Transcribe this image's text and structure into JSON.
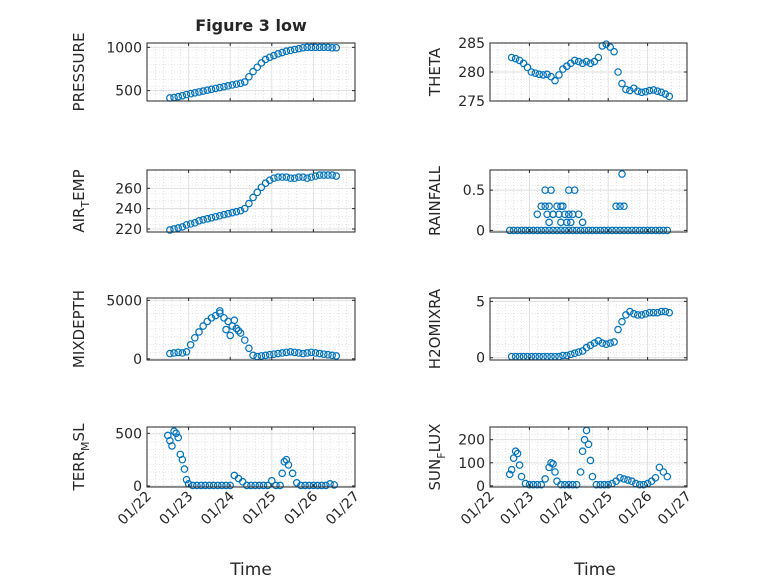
{
  "figure": {
    "title": "Figure 3 low",
    "xlabel": "Time",
    "marker_color": "#0072BD",
    "x_tick_labels": [
      "01/22",
      "01/23",
      "01/24",
      "01/25",
      "01/26",
      "01/27"
    ]
  },
  "chart_data": [
    {
      "type": "scatter",
      "ylabel": "PRESSURE",
      "ylim": [
        380,
        1050
      ],
      "yticks": [
        500,
        1000
      ],
      "xlim": [
        0,
        5
      ],
      "grid": true,
      "minor_grid": true,
      "x": [
        0.55,
        0.65,
        0.75,
        0.85,
        0.95,
        1.05,
        1.15,
        1.25,
        1.35,
        1.45,
        1.55,
        1.65,
        1.75,
        1.85,
        1.95,
        2.05,
        2.15,
        2.25,
        2.35,
        2.45,
        2.55,
        2.65,
        2.75,
        2.85,
        2.95,
        3.05,
        3.15,
        3.25,
        3.35,
        3.45,
        3.55,
        3.65,
        3.75,
        3.85,
        3.95,
        4.05,
        4.15,
        4.25,
        4.35,
        4.45,
        4.55
      ],
      "y": [
        415,
        420,
        430,
        440,
        455,
        465,
        475,
        485,
        495,
        505,
        515,
        525,
        535,
        545,
        555,
        565,
        575,
        585,
        600,
        660,
        720,
        770,
        820,
        860,
        885,
        905,
        925,
        940,
        955,
        965,
        975,
        985,
        995,
        1000,
        1000,
        1000,
        1000,
        1000,
        1000,
        995,
        995
      ]
    },
    {
      "type": "scatter",
      "ylabel": "THETA",
      "ylim": [
        275,
        285
      ],
      "yticks": [
        275,
        280,
        285
      ],
      "xlim": [
        0,
        5
      ],
      "grid": true,
      "minor_grid": true,
      "x": [
        0.55,
        0.65,
        0.75,
        0.85,
        0.95,
        1.05,
        1.15,
        1.25,
        1.35,
        1.45,
        1.55,
        1.65,
        1.75,
        1.85,
        1.95,
        2.05,
        2.15,
        2.25,
        2.35,
        2.45,
        2.55,
        2.65,
        2.75,
        2.85,
        2.95,
        3.05,
        3.15,
        3.25,
        3.35,
        3.45,
        3.55,
        3.65,
        3.75,
        3.85,
        3.95,
        4.05,
        4.15,
        4.25,
        4.35,
        4.45,
        4.55
      ],
      "y": [
        282.5,
        282.3,
        282.0,
        281.5,
        280.8,
        280.0,
        279.8,
        279.6,
        279.5,
        279.6,
        279.2,
        278.5,
        279.5,
        280.5,
        281.0,
        281.5,
        282.0,
        281.8,
        281.5,
        281.8,
        281.5,
        281.8,
        282.5,
        284.5,
        284.8,
        284.3,
        283.5,
        280.0,
        278.0,
        277.0,
        276.8,
        277.2,
        276.7,
        276.5,
        276.6,
        276.8,
        276.9,
        276.7,
        276.5,
        276.2,
        275.8
      ]
    },
    {
      "type": "scatter",
      "ylabel": "AIR_TEMP",
      "ylim": [
        217,
        278
      ],
      "yticks": [
        220,
        240,
        260
      ],
      "xlim": [
        0,
        5
      ],
      "grid": true,
      "minor_grid": true,
      "x": [
        0.55,
        0.65,
        0.75,
        0.85,
        0.95,
        1.05,
        1.15,
        1.25,
        1.35,
        1.45,
        1.55,
        1.65,
        1.75,
        1.85,
        1.95,
        2.05,
        2.15,
        2.25,
        2.35,
        2.45,
        2.55,
        2.65,
        2.75,
        2.85,
        2.95,
        3.05,
        3.15,
        3.25,
        3.35,
        3.45,
        3.55,
        3.65,
        3.75,
        3.85,
        3.95,
        4.05,
        4.15,
        4.25,
        4.35,
        4.45,
        4.55
      ],
      "y": [
        219,
        220,
        221,
        222,
        224,
        225,
        226,
        228,
        229,
        230,
        231,
        232,
        233,
        234,
        235,
        236,
        237,
        238,
        240,
        245,
        251,
        256,
        261,
        265,
        268,
        270,
        271,
        271,
        271,
        270,
        270,
        271,
        271,
        270,
        271,
        272,
        273,
        273,
        273,
        273,
        272
      ]
    },
    {
      "type": "scatter",
      "ylabel": "RAINFALL",
      "ylim": [
        -0.02,
        0.75
      ],
      "yticks": [
        0,
        0.5
      ],
      "xlim": [
        0,
        5
      ],
      "grid": true,
      "minor_grid": true,
      "x": [
        0.5,
        0.6,
        0.7,
        0.8,
        0.9,
        1.0,
        1.1,
        1.2,
        1.3,
        1.4,
        1.5,
        1.6,
        1.7,
        1.8,
        1.9,
        2.0,
        2.1,
        2.2,
        2.3,
        2.4,
        2.5,
        2.6,
        2.7,
        2.8,
        2.9,
        3.0,
        3.1,
        3.2,
        3.3,
        3.4,
        3.5,
        3.6,
        3.7,
        3.8,
        3.9,
        4.0,
        4.1,
        4.2,
        4.3,
        4.4,
        4.5,
        1.2,
        1.3,
        1.4,
        1.5,
        1.6,
        1.7,
        1.8,
        1.9,
        2.0,
        2.1,
        1.4,
        1.55,
        1.85,
        2.0,
        2.15,
        1.45,
        1.6,
        1.75,
        1.95,
        2.05,
        1.5,
        1.8,
        2.25,
        2.35,
        3.2,
        3.3,
        3.4,
        3.35
      ],
      "y": [
        0,
        0,
        0,
        0,
        0,
        0,
        0,
        0,
        0,
        0,
        0,
        0,
        0,
        0,
        0,
        0,
        0,
        0,
        0,
        0,
        0,
        0,
        0,
        0,
        0,
        0,
        0,
        0,
        0,
        0,
        0,
        0,
        0,
        0,
        0,
        0,
        0,
        0,
        0,
        0,
        0,
        0.2,
        0.3,
        0.3,
        0.3,
        0.2,
        0.3,
        0.3,
        0.2,
        0.2,
        0.2,
        0.5,
        0.5,
        0.3,
        0.5,
        0.5,
        0.2,
        0.2,
        0.2,
        0.1,
        0.1,
        0.1,
        0.1,
        0.2,
        0.1,
        0.3,
        0.3,
        0.3,
        0.7
      ]
    },
    {
      "type": "scatter",
      "ylabel": "MIXDEPTH",
      "ylim": [
        -100,
        5200
      ],
      "yticks": [
        0,
        5000
      ],
      "xlim": [
        0,
        5
      ],
      "grid": true,
      "minor_grid": true,
      "x": [
        0.55,
        0.65,
        0.75,
        0.85,
        0.95,
        1.05,
        1.15,
        1.25,
        1.35,
        1.45,
        1.55,
        1.65,
        1.75,
        1.85,
        1.95,
        2.05,
        2.15,
        2.25,
        2.35,
        2.45,
        2.55,
        2.65,
        2.75,
        2.85,
        2.95,
        3.05,
        3.15,
        3.25,
        3.35,
        3.45,
        3.55,
        3.65,
        3.75,
        3.85,
        3.95,
        4.05,
        4.15,
        4.25,
        4.35,
        4.45,
        4.55,
        1.75,
        1.9,
        2.0,
        2.1,
        2.2
      ],
      "y": [
        450,
        500,
        550,
        500,
        600,
        1200,
        1800,
        2300,
        2800,
        3200,
        3500,
        3700,
        3900,
        3500,
        3200,
        2800,
        2600,
        2200,
        1600,
        900,
        300,
        200,
        250,
        300,
        350,
        400,
        450,
        500,
        550,
        600,
        550,
        500,
        450,
        500,
        550,
        500,
        450,
        400,
        350,
        300,
        250,
        4100,
        2500,
        2000,
        3300,
        2400
      ]
    },
    {
      "type": "scatter",
      "ylabel": "H2OMIXRA",
      "ylim": [
        -0.2,
        5.3
      ],
      "yticks": [
        0,
        5
      ],
      "xlim": [
        0,
        5
      ],
      "grid": true,
      "minor_grid": true,
      "x": [
        0.55,
        0.65,
        0.75,
        0.85,
        0.95,
        1.05,
        1.15,
        1.25,
        1.35,
        1.45,
        1.55,
        1.65,
        1.75,
        1.85,
        1.95,
        2.05,
        2.15,
        2.25,
        2.35,
        2.45,
        2.55,
        2.65,
        2.75,
        2.85,
        2.95,
        3.05,
        3.15,
        3.25,
        3.35,
        3.45,
        3.55,
        3.65,
        3.75,
        3.85,
        3.95,
        4.05,
        4.15,
        4.25,
        4.35,
        4.45,
        4.55
      ],
      "y": [
        0.1,
        0.1,
        0.1,
        0.1,
        0.1,
        0.1,
        0.1,
        0.1,
        0.1,
        0.1,
        0.1,
        0.1,
        0.1,
        0.2,
        0.2,
        0.3,
        0.4,
        0.5,
        0.6,
        0.9,
        1.1,
        1.3,
        1.5,
        1.3,
        1.2,
        1.3,
        1.4,
        2.5,
        3.2,
        3.8,
        4.1,
        3.9,
        3.8,
        3.8,
        3.9,
        4.0,
        4.0,
        4.0,
        4.1,
        4.1,
        4.0
      ]
    },
    {
      "type": "scatter",
      "ylabel": "TERR_MSL",
      "ylim": [
        -10,
        560
      ],
      "yticks": [
        0,
        500
      ],
      "xlim": [
        0,
        5
      ],
      "grid": true,
      "minor_grid": true,
      "x": [
        0.5,
        0.55,
        0.6,
        0.65,
        0.7,
        0.75,
        0.8,
        0.85,
        0.9,
        0.95,
        1.0,
        1.1,
        1.2,
        1.3,
        1.4,
        1.5,
        1.6,
        1.7,
        1.8,
        1.9,
        2.0,
        2.1,
        2.2,
        2.3,
        2.4,
        2.5,
        2.6,
        2.7,
        2.8,
        2.9,
        3.0,
        3.1,
        3.2,
        3.25,
        3.3,
        3.35,
        3.4,
        3.5,
        3.6,
        3.7,
        3.8,
        3.9,
        4.0,
        4.1,
        4.2,
        4.3,
        4.4,
        4.5
      ],
      "y": [
        480,
        430,
        380,
        520,
        500,
        460,
        300,
        250,
        160,
        60,
        20,
        5,
        5,
        5,
        5,
        5,
        5,
        5,
        5,
        5,
        5,
        100,
        70,
        40,
        5,
        5,
        5,
        5,
        5,
        5,
        50,
        5,
        5,
        120,
        230,
        250,
        200,
        120,
        30,
        5,
        5,
        5,
        5,
        5,
        5,
        5,
        20,
        10
      ]
    },
    {
      "type": "scatter",
      "ylabel": "SUN_FLUX",
      "ylim": [
        -5,
        255
      ],
      "yticks": [
        0,
        100,
        200
      ],
      "xlim": [
        0,
        5
      ],
      "grid": true,
      "minor_grid": true,
      "x": [
        0.5,
        0.55,
        0.6,
        0.65,
        0.7,
        0.75,
        0.8,
        0.9,
        1.0,
        1.1,
        1.2,
        1.3,
        1.4,
        1.5,
        1.55,
        1.6,
        1.65,
        1.7,
        1.8,
        1.9,
        2.0,
        2.1,
        2.2,
        2.3,
        2.35,
        2.4,
        2.45,
        2.5,
        2.55,
        2.6,
        2.7,
        2.8,
        2.9,
        3.0,
        3.1,
        3.2,
        3.3,
        3.4,
        3.5,
        3.6,
        3.7,
        3.8,
        3.9,
        4.0,
        4.1,
        4.2,
        4.3,
        4.4,
        4.5
      ],
      "y": [
        50,
        70,
        120,
        150,
        140,
        90,
        40,
        10,
        5,
        5,
        5,
        5,
        30,
        80,
        100,
        95,
        60,
        20,
        5,
        5,
        5,
        5,
        5,
        60,
        150,
        200,
        240,
        180,
        110,
        40,
        5,
        5,
        5,
        5,
        10,
        20,
        35,
        30,
        25,
        20,
        10,
        5,
        5,
        10,
        20,
        35,
        80,
        60,
        40
      ]
    }
  ]
}
